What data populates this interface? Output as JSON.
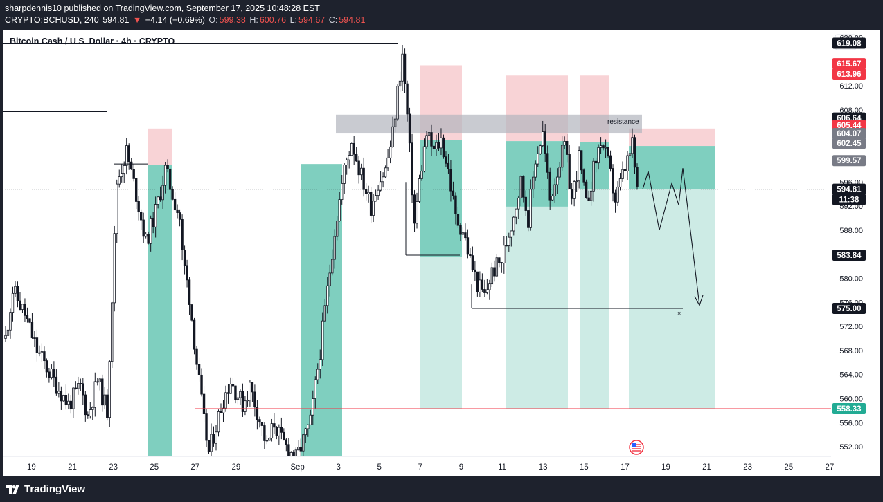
{
  "header": {
    "publish_line": "sharpdennis10 published on TradingView.com, September 17, 2025 10:48:28 EST",
    "symbol": "CRYPTO:BCHUSD, 240",
    "last": "594.81",
    "change_arrow": "▼",
    "change": "−4.14 (−0.69%)",
    "o_label": "O:",
    "o_value": "599.38",
    "h_label": "H:",
    "h_value": "600.76",
    "l_label": "L:",
    "l_value": "594.67",
    "c_label": "C:",
    "c_value": "594.81"
  },
  "footer": {
    "brand": "TradingView"
  },
  "colors": {
    "bull_zone": "#7fcfbf",
    "bull_zone_light": "#cdebe5",
    "bear_zone": "#f8d3d6",
    "red": "#f23645",
    "teal": "#22ab94",
    "black_tag": "#131722",
    "gray_tag": "#787b86"
  },
  "chart_data": {
    "type": "candlestick",
    "title": "Bitcoin Cash / U.S. Dollar · 4h · CRYPTO",
    "currency": "USD",
    "x_ticks": [
      "19",
      "21",
      "23",
      "25",
      "27",
      "29",
      "Sep",
      "3",
      "5",
      "7",
      "9",
      "11",
      "13",
      "15",
      "17",
      "19",
      "21",
      "23",
      "25",
      "27"
    ],
    "y_ticks": [
      "620.00",
      "616.00",
      "612.00",
      "608.00",
      "604.00",
      "600.00",
      "596.00",
      "592.00",
      "588.00",
      "584.00",
      "580.00",
      "576.00",
      "572.00",
      "568.00",
      "564.00",
      "560.00",
      "556.00",
      "552.00"
    ],
    "ylim": [
      550.4,
      621.2
    ],
    "price_tags": [
      {
        "label": "619.08",
        "value": 619.08,
        "kind": "black"
      },
      {
        "label": "615.67",
        "value": 615.67,
        "kind": "red"
      },
      {
        "label": "613.96",
        "value": 613.96,
        "kind": "red"
      },
      {
        "label": "606.64",
        "value": 606.64,
        "kind": "black"
      },
      {
        "label": "605.44",
        "value": 605.44,
        "kind": "red"
      },
      {
        "label": "604.07",
        "value": 604.07,
        "kind": "gray"
      },
      {
        "label": "602.45",
        "value": 602.45,
        "kind": "gray"
      },
      {
        "label": "599.57",
        "value": 599.57,
        "kind": "gray"
      },
      {
        "label": "594.81",
        "value": 594.81,
        "kind": "black"
      },
      {
        "label": "11:38",
        "value": 593.1,
        "kind": "black"
      },
      {
        "label": "583.84",
        "value": 583.84,
        "kind": "black"
      },
      {
        "label": "575.00",
        "value": 575.0,
        "kind": "black"
      },
      {
        "label": "558.33",
        "value": 558.33,
        "kind": "teal"
      }
    ],
    "annotations": {
      "resistance_label": "resistance",
      "target_marker": "×"
    },
    "key_levels": {
      "current_price": 594.81,
      "support_line": 558.33,
      "target": 575.0,
      "resistance_low": 604.07,
      "resistance_high": 607.2
    }
  }
}
